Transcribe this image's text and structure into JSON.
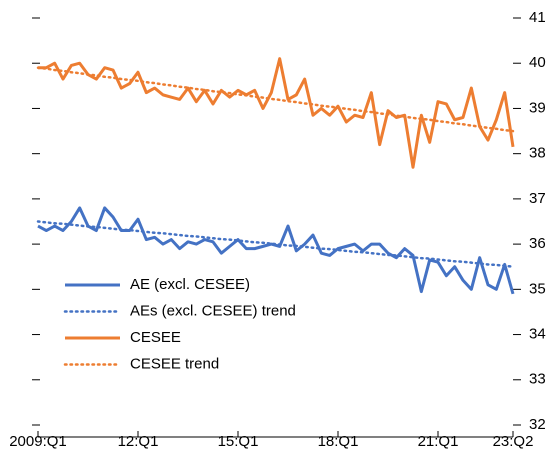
{
  "chart_data": {
    "type": "line",
    "categories": [
      "2009:Q1",
      null,
      null,
      null,
      null,
      null,
      null,
      null,
      null,
      null,
      null,
      null,
      "12:Q1",
      null,
      null,
      null,
      null,
      null,
      null,
      null,
      null,
      null,
      null,
      null,
      "15:Q1",
      null,
      null,
      null,
      null,
      null,
      null,
      null,
      null,
      null,
      null,
      null,
      "18:Q1",
      null,
      null,
      null,
      null,
      null,
      null,
      null,
      null,
      null,
      null,
      null,
      "21:Q1",
      null,
      null,
      null,
      null,
      null,
      null,
      null,
      null,
      "23:Q2"
    ],
    "series": [
      {
        "name": "AE (excl. CESEE)",
        "color": "#4472c4",
        "dashed": false,
        "values": [
          36.4,
          36.3,
          36.4,
          36.3,
          36.5,
          36.8,
          36.4,
          36.3,
          36.8,
          36.6,
          36.3,
          36.3,
          36.55,
          36.1,
          36.15,
          36.0,
          36.1,
          35.9,
          36.05,
          36.0,
          36.1,
          36.05,
          35.8,
          35.95,
          36.1,
          35.9,
          35.9,
          35.95,
          36.0,
          35.95,
          36.4,
          35.85,
          36.0,
          36.2,
          35.8,
          35.75,
          35.9,
          35.95,
          36.0,
          35.85,
          36.0,
          36.0,
          35.8,
          35.7,
          35.9,
          35.75,
          34.95,
          35.65,
          35.6,
          35.3,
          35.5,
          35.2,
          35.0,
          35.7,
          35.1,
          35.0,
          35.55,
          34.9
        ]
      },
      {
        "name": "AEs (excl. CESEE) trend",
        "color": "#4472c4",
        "dashed": true,
        "values": [
          36.5,
          36.48,
          36.46,
          36.45,
          36.43,
          36.41,
          36.39,
          36.38,
          36.36,
          36.34,
          36.32,
          36.31,
          36.29,
          36.27,
          36.25,
          36.24,
          36.22,
          36.2,
          36.18,
          36.17,
          36.15,
          36.13,
          36.11,
          36.1,
          36.08,
          36.06,
          36.04,
          36.03,
          36.01,
          35.99,
          35.97,
          35.96,
          35.94,
          35.92,
          35.9,
          35.89,
          35.87,
          35.85,
          35.83,
          35.82,
          35.8,
          35.78,
          35.76,
          35.75,
          35.73,
          35.71,
          35.69,
          35.68,
          35.66,
          35.64,
          35.62,
          35.61,
          35.59,
          35.57,
          35.55,
          35.54,
          35.52,
          35.5
        ]
      },
      {
        "name": "CESEE",
        "color": "#ed7d31",
        "dashed": false,
        "values": [
          39.9,
          39.9,
          40.0,
          39.65,
          39.95,
          40.0,
          39.75,
          39.65,
          39.9,
          39.85,
          39.45,
          39.55,
          39.8,
          39.35,
          39.45,
          39.3,
          39.25,
          39.2,
          39.45,
          39.15,
          39.4,
          39.1,
          39.4,
          39.25,
          39.4,
          39.3,
          39.4,
          39.0,
          39.35,
          40.1,
          39.2,
          39.3,
          39.65,
          38.85,
          39.0,
          38.85,
          39.05,
          38.7,
          38.85,
          38.8,
          39.35,
          38.2,
          38.95,
          38.8,
          38.85,
          37.7,
          38.85,
          38.25,
          39.15,
          39.1,
          38.75,
          38.8,
          39.45,
          38.6,
          38.3,
          38.75,
          39.35,
          38.15
        ]
      },
      {
        "name": "CESEE trend",
        "color": "#ed7d31",
        "dashed": true,
        "values": [
          39.9,
          39.88,
          39.85,
          39.83,
          39.8,
          39.78,
          39.75,
          39.73,
          39.7,
          39.68,
          39.65,
          39.63,
          39.61,
          39.58,
          39.56,
          39.53,
          39.51,
          39.48,
          39.46,
          39.43,
          39.41,
          39.38,
          39.36,
          39.34,
          39.31,
          39.29,
          39.26,
          39.24,
          39.21,
          39.19,
          39.16,
          39.14,
          39.11,
          39.09,
          39.06,
          39.04,
          39.02,
          38.99,
          38.97,
          38.94,
          38.92,
          38.89,
          38.87,
          38.84,
          38.82,
          38.79,
          38.77,
          38.75,
          38.72,
          38.7,
          38.67,
          38.65,
          38.62,
          38.6,
          38.57,
          38.55,
          38.52,
          38.5
        ]
      }
    ],
    "ylim": [
      32,
      41
    ],
    "yticks": [
      32,
      33,
      34,
      35,
      36,
      37,
      38,
      39,
      40,
      41
    ],
    "legend": "lower-left"
  }
}
